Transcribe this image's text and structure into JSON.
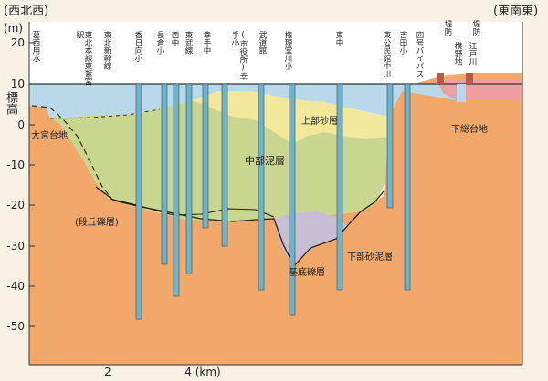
{
  "corner_labels": {
    "left": "(西北西)",
    "right": "(東南東)",
    "unit": "(m)"
  },
  "axis": {
    "y_title": "標高",
    "y_ticks": [
      "20",
      "10",
      "0",
      "-10",
      "-20",
      "-30",
      "-40",
      "-50"
    ],
    "x_ticks": [
      "2",
      "4 (km)"
    ]
  },
  "wells": [
    "葛西用水",
    "東北本線東鷲宮駅",
    "東北新幹線",
    "香日向小",
    "長倉小",
    "西中",
    "東武線",
    "幸手中",
    "(市役所)幸手小",
    "武道館",
    "権現堂川小",
    "東中",
    "東公民館中川",
    "吉田小",
    "四号バイパス"
  ],
  "surface_features": [
    "堤防",
    "横野地",
    "堤防",
    "江戸川"
  ],
  "layers": {
    "upper_sand": "上部砂層",
    "middle_mud": "中部泥層",
    "lower_sand_mud": "下部砂泥層",
    "basal_gravel": "基底礫層",
    "terrace_gravel": "(段丘礫層)",
    "omiya_upland": "大宮台地",
    "shimousa_upland": "下総台地"
  },
  "colors": {
    "ground": "#f1a86a",
    "middle_mud": "#c9d68f",
    "upper_sand": "#f3e79a",
    "alluvium_top": "#b9d9ea",
    "basal": "#c7bed6",
    "dike": "#ef9fa0",
    "bore": "#6fb3c8"
  }
}
